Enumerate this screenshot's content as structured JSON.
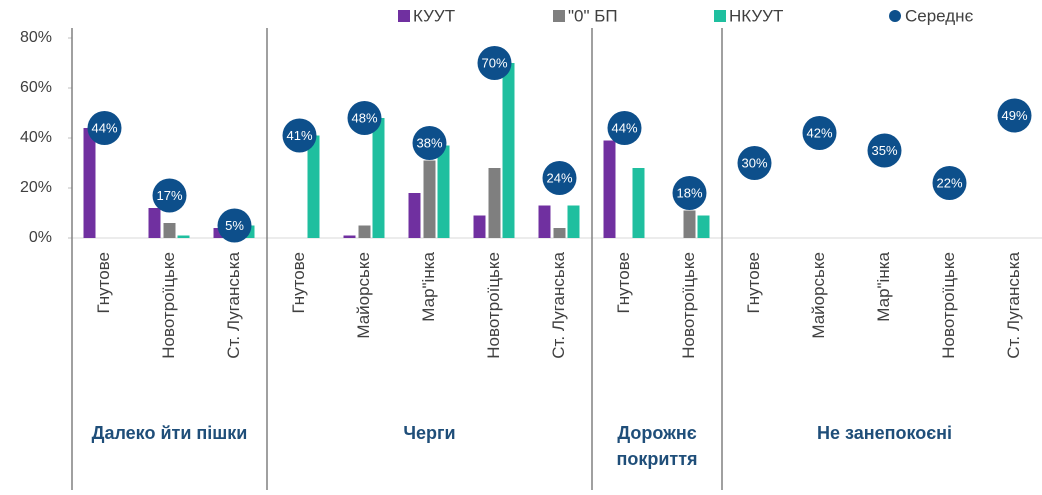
{
  "chart_data": {
    "type": "bar",
    "groups": [
      {
        "name": "Далеко йти пішки",
        "categories": [
          "Гнутове",
          "Новотроїцьке",
          "Ст. Луганська"
        ]
      },
      {
        "name": "Черги",
        "categories": [
          "Гнутове",
          "Майорське",
          "Мар\"інка",
          "Новотроїцьке",
          "Ст. Луганська"
        ]
      },
      {
        "name": "Дорожнє покриття",
        "categories": [
          "Гнутове",
          "Новотроїцьке"
        ]
      },
      {
        "name": "Не занепокоєні",
        "categories": [
          "Гнутове",
          "Майорське",
          "Мар\"інка",
          "Новотроїцьке",
          "Ст. Луганська"
        ]
      }
    ],
    "series": [
      {
        "name": "КУУТ",
        "color": "#7030a0",
        "values": [
          44,
          12,
          4,
          0,
          1,
          18,
          9,
          13,
          39,
          0,
          null,
          null,
          null,
          null,
          null
        ]
      },
      {
        "name": "\"0\" БП",
        "color": "#7f7f7f",
        "values": [
          0,
          6,
          0,
          0,
          5,
          31,
          28,
          4,
          0,
          11,
          null,
          null,
          null,
          null,
          null
        ]
      },
      {
        "name": "НКУУТ",
        "color": "#1fbf9f",
        "values": [
          0,
          1,
          5,
          41,
          48,
          37,
          70,
          13,
          28,
          9,
          null,
          null,
          null,
          null,
          null
        ]
      },
      {
        "name": "Середнє",
        "color": "#0d4f8b",
        "type": "scatter",
        "values": [
          44,
          17,
          5,
          41,
          48,
          38,
          70,
          24,
          44,
          18,
          30,
          42,
          35,
          22,
          49
        ],
        "value_labels": [
          "44%",
          "17%",
          "5%",
          "41%",
          "48%",
          "38%",
          "70%",
          "24%",
          "44%",
          "18%",
          "30%",
          "42%",
          "35%",
          "22%",
          "49%"
        ]
      }
    ],
    "ylim": [
      0,
      80
    ],
    "yticks": [
      {
        "value": 0,
        "label": "0%"
      },
      {
        "value": 20,
        "label": "20%"
      },
      {
        "value": 40,
        "label": "40%"
      },
      {
        "value": 60,
        "label": "60%"
      },
      {
        "value": 80,
        "label": "80%"
      }
    ],
    "grid": false
  }
}
